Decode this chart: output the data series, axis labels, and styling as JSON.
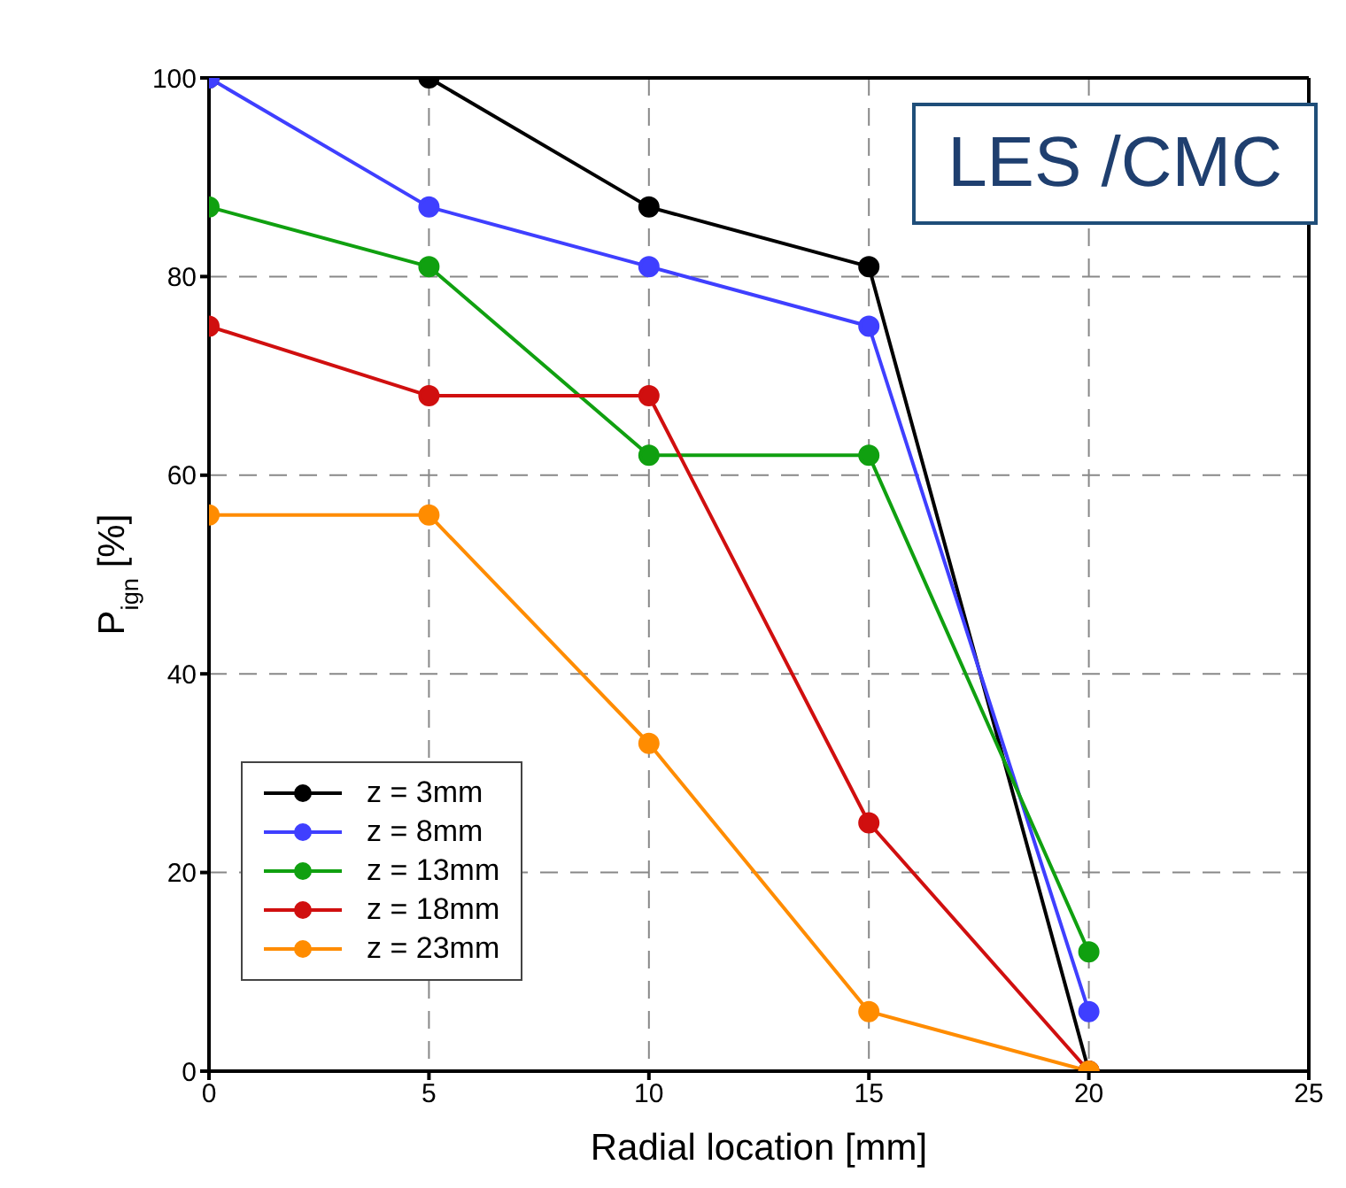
{
  "chart_data": {
    "type": "line",
    "xlabel": "Radial location [mm]",
    "ylabel": "P$_{ign}$ [%]",
    "annotations": [
      "LES /CMC"
    ],
    "x": [
      0,
      5,
      10,
      15,
      20
    ],
    "xlim": [
      0,
      25
    ],
    "xticks": [
      0,
      5,
      10,
      15,
      20,
      25
    ],
    "ylim": [
      0,
      100
    ],
    "yticks": [
      0,
      20,
      40,
      60,
      80,
      100
    ],
    "grid": true,
    "legend": "bottom left",
    "marker": "circle",
    "line_style": "solid",
    "series": [
      {
        "name": "z = 3mm",
        "color": "#000000",
        "values": [
          100,
          100,
          87,
          81,
          0
        ]
      },
      {
        "name": "z = 8mm",
        "color": "#3f3fff",
        "values": [
          100,
          87,
          81,
          75,
          6
        ]
      },
      {
        "name": "z = 13mm",
        "color": "#10a010",
        "values": [
          87,
          81,
          62,
          62,
          12
        ]
      },
      {
        "name": "z = 18mm",
        "color": "#d00f0f",
        "values": [
          75,
          68,
          68,
          25,
          0
        ]
      },
      {
        "name": "z = 23mm",
        "color": "#ff8c00",
        "values": [
          56,
          56,
          33,
          6,
          0
        ]
      }
    ]
  }
}
